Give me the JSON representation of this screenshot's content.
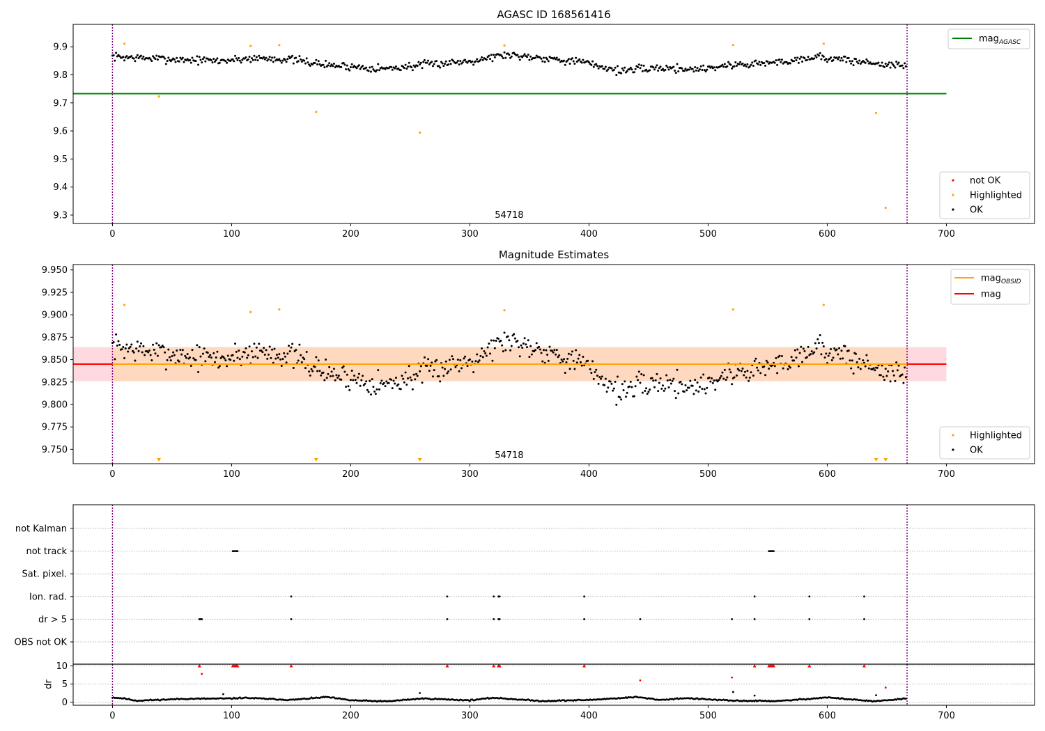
{
  "colors": {
    "ok": "#000000",
    "highlighted": "#ffa500",
    "not_ok": "#ff0000",
    "mag_agasc": "#008000",
    "mag_obsid": "#ffa500",
    "mag": "#ff0000",
    "band_outer": "#ffc0cb",
    "band_inner": "#ffd8c0",
    "obsid_line": "#800080",
    "grid": "#b0b0b0"
  },
  "chart_data": [
    {
      "id": "top",
      "type": "scatter",
      "title": "AGASC ID 168561416",
      "xlim": [
        -33,
        774
      ],
      "ylim": [
        9.27,
        9.98
      ],
      "xticks": [
        0,
        100,
        200,
        300,
        400,
        500,
        600,
        700
      ],
      "yticks": [
        "9.3",
        "9.4",
        "9.5",
        "9.6",
        "9.7",
        "9.8",
        "9.9"
      ],
      "obsid_bounds": [
        0,
        667
      ],
      "annotation": {
        "text": "54718",
        "x": 333
      },
      "hlines": [
        {
          "name": "mag_AGASC",
          "y": 9.733,
          "x": [
            -33,
            700
          ]
        }
      ],
      "ok_series": {
        "name": "OK",
        "n": 667,
        "knots": [
          [
            0,
            9.865
          ],
          [
            25,
            9.86
          ],
          [
            55,
            9.855
          ],
          [
            90,
            9.85
          ],
          [
            120,
            9.86
          ],
          [
            150,
            9.855
          ],
          [
            180,
            9.835
          ],
          [
            230,
            9.822
          ],
          [
            260,
            9.835
          ],
          [
            300,
            9.85
          ],
          [
            330,
            9.872
          ],
          [
            360,
            9.862
          ],
          [
            395,
            9.845
          ],
          [
            425,
            9.815
          ],
          [
            460,
            9.825
          ],
          [
            490,
            9.82
          ],
          [
            520,
            9.835
          ],
          [
            560,
            9.845
          ],
          [
            590,
            9.865
          ],
          [
            620,
            9.85
          ],
          [
            667,
            9.83
          ]
        ],
        "noise": 0.013
      },
      "highlighted": {
        "name": "Highlighted",
        "x": [
          10,
          39,
          116,
          140,
          171,
          258,
          329,
          521,
          597,
          641,
          649
        ],
        "y": [
          9.911,
          9.723,
          9.903,
          9.906,
          9.668,
          9.594,
          9.905,
          9.906,
          9.911,
          9.664,
          9.326
        ]
      },
      "legend_upper": [
        {
          "label": "mag",
          "sub": "AGASC",
          "kind": "line",
          "color": "#008000"
        }
      ],
      "legend_lower": [
        {
          "label": "not OK",
          "kind": "dot",
          "color": "#ff0000"
        },
        {
          "label": "Highlighted",
          "kind": "dot",
          "color": "#ffa500"
        },
        {
          "label": "OK",
          "kind": "dot",
          "color": "#000000"
        }
      ]
    },
    {
      "id": "mid",
      "type": "scatter",
      "title": "Magnitude Estimates",
      "xlim": [
        -33,
        774
      ],
      "ylim": [
        9.734,
        9.956
      ],
      "xticks": [
        0,
        100,
        200,
        300,
        400,
        500,
        600,
        700
      ],
      "yticks": [
        "9.750",
        "9.775",
        "9.800",
        "9.825",
        "9.850",
        "9.875",
        "9.900",
        "9.925",
        "9.950"
      ],
      "obsid_bounds": [
        0,
        667
      ],
      "annotation": {
        "text": "54718",
        "x": 333
      },
      "band_outer": [
        9.826,
        9.864
      ],
      "band_inner": [
        9.826,
        9.864
      ],
      "hlines": [
        {
          "name": "mag",
          "y": 9.845,
          "x": [
            -33,
            700
          ]
        },
        {
          "name": "mag_OBSID",
          "y": 9.845,
          "x": [
            0,
            667
          ]
        }
      ],
      "ok_series": {
        "name": "OK",
        "n": 667,
        "knots": [
          [
            0,
            9.865
          ],
          [
            25,
            9.86
          ],
          [
            55,
            9.855
          ],
          [
            90,
            9.85
          ],
          [
            120,
            9.86
          ],
          [
            150,
            9.855
          ],
          [
            180,
            9.835
          ],
          [
            230,
            9.822
          ],
          [
            260,
            9.835
          ],
          [
            300,
            9.85
          ],
          [
            330,
            9.872
          ],
          [
            360,
            9.862
          ],
          [
            395,
            9.845
          ],
          [
            425,
            9.815
          ],
          [
            460,
            9.825
          ],
          [
            490,
            9.82
          ],
          [
            520,
            9.835
          ],
          [
            560,
            9.845
          ],
          [
            590,
            9.865
          ],
          [
            620,
            9.85
          ],
          [
            667,
            9.83
          ]
        ],
        "noise": 0.013
      },
      "highlighted": {
        "name": "Highlighted",
        "x": [
          10,
          116,
          140,
          329,
          521,
          597
        ],
        "y": [
          9.911,
          9.903,
          9.906,
          9.905,
          9.906,
          9.911
        ]
      },
      "offscale_markers": {
        "x": [
          39,
          171,
          258,
          641,
          649
        ]
      },
      "legend_upper": [
        {
          "label": "mag",
          "sub": "OBSID",
          "kind": "line",
          "color": "#ffa500"
        },
        {
          "label": "mag",
          "kind": "line",
          "color": "#ff0000"
        }
      ],
      "legend_lower": [
        {
          "label": "Highlighted",
          "kind": "dot",
          "color": "#ffa500"
        },
        {
          "label": "OK",
          "kind": "dot",
          "color": "#000000"
        }
      ]
    },
    {
      "id": "flags",
      "type": "scatter",
      "xlim": [
        -33,
        774
      ],
      "categories": [
        "not Kalman",
        "not track",
        "Sat. pixel.",
        "Ion. rad.",
        "dr > 5",
        "OBS not OK"
      ],
      "obsid_bounds": [
        0,
        667
      ],
      "points": {
        "not track": [
          101,
          102,
          103,
          104,
          105,
          551,
          552,
          553,
          554,
          555
        ],
        "Ion. rad.": [
          150,
          281,
          320,
          324,
          325,
          396,
          539,
          585,
          631
        ],
        "dr > 5": [
          73,
          74,
          75,
          150,
          281,
          320,
          324,
          325,
          396,
          443,
          520,
          539,
          585,
          631
        ]
      }
    },
    {
      "id": "dr",
      "type": "scatter",
      "xlim": [
        -33,
        774
      ],
      "ylim": [
        -0.5,
        10.5
      ],
      "ylabel": "dr",
      "yticks": [
        "0",
        "5",
        "10"
      ],
      "xticks": [
        0,
        100,
        200,
        300,
        400,
        500,
        600,
        700
      ],
      "obsid_bounds": [
        0,
        667
      ],
      "ok_series": {
        "name": "OK",
        "n": 667,
        "knots": [
          [
            0,
            1.3
          ],
          [
            10,
            1.0
          ],
          [
            20,
            0.4
          ],
          [
            60,
            0.9
          ],
          [
            100,
            1.0
          ],
          [
            110,
            1.2
          ],
          [
            150,
            0.6
          ],
          [
            180,
            1.4
          ],
          [
            200,
            0.5
          ],
          [
            230,
            0.2
          ],
          [
            260,
            1.0
          ],
          [
            300,
            0.5
          ],
          [
            320,
            1.2
          ],
          [
            360,
            0.3
          ],
          [
            400,
            0.6
          ],
          [
            440,
            1.4
          ],
          [
            460,
            0.6
          ],
          [
            480,
            1.1
          ],
          [
            520,
            0.4
          ],
          [
            560,
            0.3
          ],
          [
            600,
            1.3
          ],
          [
            640,
            0.2
          ],
          [
            667,
            1.0
          ]
        ],
        "noise": 0.15
      },
      "capped": {
        "x": [
          73,
          101,
          102,
          103,
          104,
          105,
          150,
          281,
          320,
          324,
          325,
          396,
          539,
          551,
          552,
          553,
          554,
          555,
          585,
          631
        ],
        "y": 10
      },
      "red_points": {
        "x": [
          75,
          443,
          520,
          649
        ],
        "y": [
          7.8,
          6.0,
          6.8,
          4.0
        ]
      },
      "black_outliers": {
        "x": [
          93,
          258,
          521,
          539,
          641
        ],
        "y": [
          2.2,
          2.5,
          2.8,
          1.8,
          1.9
        ]
      }
    }
  ]
}
